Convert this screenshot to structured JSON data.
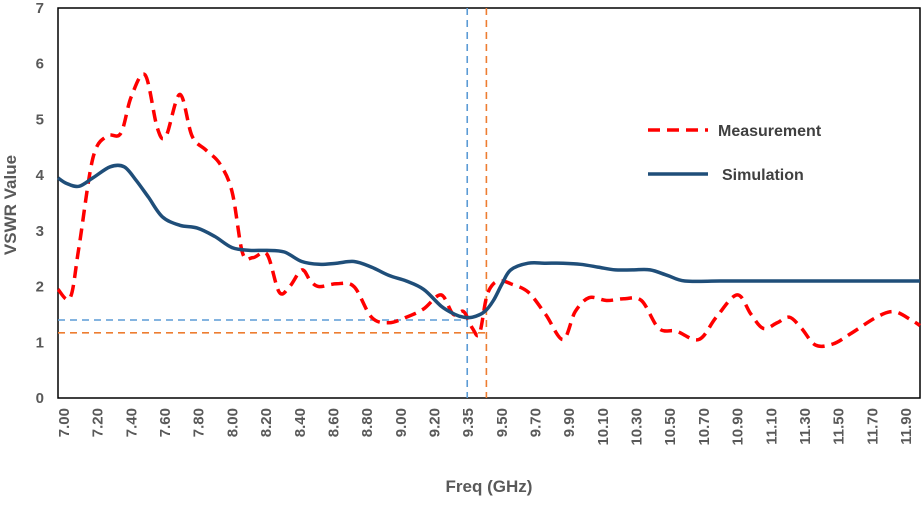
{
  "chart_data": {
    "type": "line",
    "xlabel": "Freq (GHz)",
    "ylabel": "VSWR  Value",
    "ylim": [
      0,
      7
    ],
    "yticks": [
      "0",
      "1",
      "2",
      "3",
      "4",
      "5",
      "6",
      "7"
    ],
    "xlim": [
      7.0,
      11.95
    ],
    "xticks": [
      "7.00",
      "7.20",
      "7.40",
      "7.60",
      "7.80",
      "8.00",
      "8.20",
      "8.40",
      "8.60",
      "8.80",
      "9.00",
      "9.20",
      "9.35",
      "9.50",
      "9.70",
      "9.90",
      "10.10",
      "10.30",
      "10.50",
      "10.70",
      "10.90",
      "11.10",
      "11.30",
      "11.50",
      "11.70",
      "11.90"
    ],
    "legend_position": "right-middle",
    "reference_lines": {
      "vertical": [
        {
          "x": 9.35,
          "color": "#5b9bd5"
        },
        {
          "x": 9.46,
          "color": "#ed7d31"
        }
      ],
      "horizontal": [
        {
          "y": 1.4,
          "color": "#5b9bd5"
        },
        {
          "y": 1.17,
          "color": "#ed7d31"
        }
      ]
    },
    "series": [
      {
        "name": "Measurement",
        "color": "#ff0000",
        "style": "dashed",
        "x": [
          7.0,
          7.07,
          7.12,
          7.2,
          7.28,
          7.36,
          7.42,
          7.5,
          7.57,
          7.62,
          7.7,
          7.77,
          7.85,
          7.93,
          8.0,
          8.06,
          8.12,
          8.2,
          8.27,
          8.33,
          8.4,
          8.45,
          8.5,
          8.6,
          8.7,
          8.8,
          8.9,
          9.0,
          9.1,
          9.2,
          9.27,
          9.33,
          9.38,
          9.42,
          9.46,
          9.5,
          9.55,
          9.6,
          9.7,
          9.8,
          9.9,
          9.97,
          10.05,
          10.15,
          10.25,
          10.35,
          10.45,
          10.55,
          10.68,
          10.78,
          10.9,
          10.98,
          11.05,
          11.13,
          11.2,
          11.27,
          11.35,
          11.45,
          11.55,
          11.7,
          11.8,
          11.9,
          11.95
        ],
        "y": [
          1.95,
          1.8,
          2.7,
          4.3,
          4.7,
          4.75,
          5.4,
          5.8,
          4.85,
          4.7,
          5.45,
          4.7,
          4.45,
          4.2,
          3.7,
          2.6,
          2.52,
          2.58,
          1.9,
          2.0,
          2.3,
          2.1,
          2.0,
          2.05,
          2.0,
          1.45,
          1.35,
          1.45,
          1.6,
          1.85,
          1.5,
          1.55,
          1.25,
          1.15,
          1.8,
          2.05,
          2.1,
          2.05,
          1.9,
          1.5,
          1.05,
          1.55,
          1.8,
          1.75,
          1.78,
          1.75,
          1.25,
          1.2,
          1.05,
          1.45,
          1.85,
          1.5,
          1.25,
          1.35,
          1.45,
          1.25,
          0.95,
          0.97,
          1.15,
          1.45,
          1.55,
          1.4,
          1.3
        ]
      },
      {
        "name": "Simulation",
        "color": "#1f4e79",
        "style": "solid",
        "x": [
          7.0,
          7.05,
          7.12,
          7.2,
          7.3,
          7.38,
          7.45,
          7.52,
          7.6,
          7.7,
          7.8,
          7.9,
          8.0,
          8.1,
          8.2,
          8.3,
          8.4,
          8.5,
          8.6,
          8.7,
          8.8,
          8.9,
          9.0,
          9.1,
          9.2,
          9.28,
          9.33,
          9.38,
          9.45,
          9.5,
          9.55,
          9.6,
          9.7,
          9.8,
          9.9,
          10.0,
          10.1,
          10.2,
          10.3,
          10.4,
          10.5,
          10.6,
          10.8,
          11.0,
          11.2,
          11.5,
          11.8,
          11.95
        ],
        "y": [
          3.95,
          3.85,
          3.8,
          3.95,
          4.15,
          4.15,
          3.9,
          3.6,
          3.25,
          3.1,
          3.05,
          2.9,
          2.7,
          2.65,
          2.65,
          2.62,
          2.45,
          2.4,
          2.42,
          2.45,
          2.35,
          2.2,
          2.1,
          1.95,
          1.65,
          1.5,
          1.45,
          1.45,
          1.55,
          1.75,
          2.05,
          2.3,
          2.42,
          2.42,
          2.42,
          2.4,
          2.35,
          2.3,
          2.3,
          2.3,
          2.2,
          2.1,
          2.1,
          2.1,
          2.1,
          2.1,
          2.1,
          2.1
        ]
      }
    ]
  }
}
